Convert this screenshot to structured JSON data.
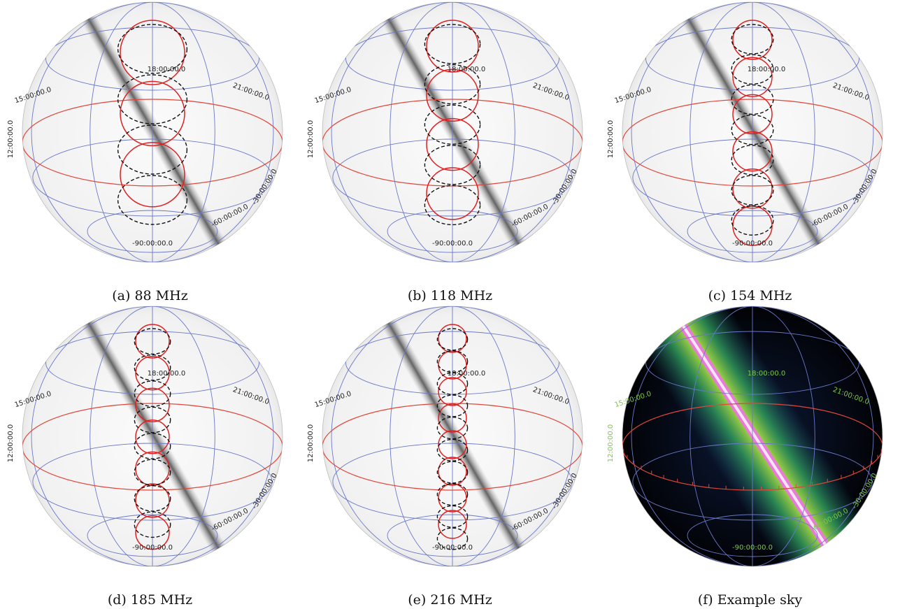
{
  "figure": {
    "panels": [
      {
        "id": "a",
        "caption": "(a) 88 MHz",
        "ring_sep": 1.0,
        "black_r": 50,
        "red_r": 46,
        "dark": false
      },
      {
        "id": "b",
        "caption": "(b) 118 MHz",
        "ring_sep": 0.8,
        "black_r": 40,
        "red_r": 37,
        "dark": false
      },
      {
        "id": "c",
        "caption": "(c) 154 MHz",
        "ring_sep": 0.62,
        "black_r": 30,
        "red_r": 28,
        "dark": false
      },
      {
        "id": "d",
        "caption": "(d) 185 MHz",
        "ring_sep": 0.52,
        "black_r": 26,
        "red_r": 24,
        "dark": false
      },
      {
        "id": "e",
        "caption": "(e) 216 MHz",
        "ring_sep": 0.45,
        "black_r": 22,
        "red_r": 20,
        "dark": false
      },
      {
        "id": "f",
        "caption": "(f) Example sky",
        "ring_sep": 0,
        "black_r": 0,
        "red_r": 0,
        "dark": true
      }
    ],
    "grid_labels": {
      "ra_18": "18:00:00.0",
      "ra_15": "15:00:00.0",
      "ra_21": "21:00:00.0",
      "ra_12": "12:00:00.0",
      "dec_m30": "-30:00:00.0",
      "dec_m60": "-60:00:00.0",
      "dec_m90": "-90:00:00.0"
    },
    "colors": {
      "grid": "#6a78c8",
      "equator": "#e0463a",
      "pointing_red": "#e02020",
      "pointing_black": "#111111",
      "dark_label": "#7cc84a"
    }
  }
}
